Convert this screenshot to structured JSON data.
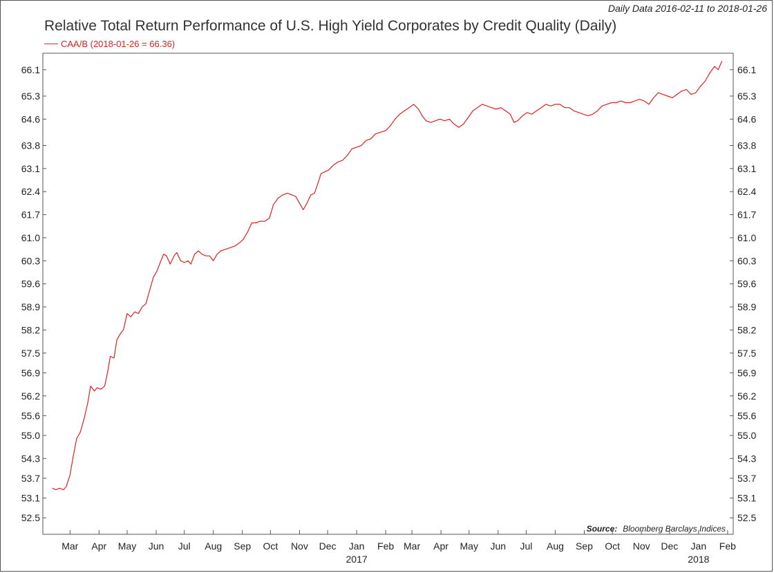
{
  "header": {
    "date_range": "Daily Data 2016-02-11 to 2018-01-26",
    "title": "Relative Total Return Performance of U.S. High Yield Corporates by Credit Quality (Daily)"
  },
  "legend": {
    "label": "CAA/B (2018-01-26 = 66.36)"
  },
  "source": {
    "label": "Source:",
    "text": "Bloomberg Barclays Indices"
  },
  "colors": {
    "series": "#e02020",
    "axis": "#555555",
    "text": "#222222"
  },
  "chart_data": {
    "type": "line",
    "title": "Relative Total Return Performance of U.S. High Yield Corporates by Credit Quality (Daily)",
    "xlim": [
      "2016-02-01",
      "2018-02-07"
    ],
    "ylim": [
      52.0,
      66.6
    ],
    "y_ticks": [
      "52.5",
      "53.1",
      "53.7",
      "54.3",
      "55.0",
      "55.6",
      "56.2",
      "56.9",
      "57.5",
      "58.2",
      "58.9",
      "59.6",
      "60.3",
      "61.0",
      "61.7",
      "62.4",
      "63.1",
      "63.8",
      "64.6",
      "65.3",
      "66.1"
    ],
    "y_axes": "left and right",
    "x_ticks": [
      {
        "date": "2016-03-01",
        "label": "Mar"
      },
      {
        "date": "2016-04-01",
        "label": "Apr"
      },
      {
        "date": "2016-05-01",
        "label": "May"
      },
      {
        "date": "2016-06-01",
        "label": "Jun"
      },
      {
        "date": "2016-07-01",
        "label": "Jul"
      },
      {
        "date": "2016-08-01",
        "label": "Aug"
      },
      {
        "date": "2016-09-01",
        "label": "Sep"
      },
      {
        "date": "2016-10-01",
        "label": "Oct"
      },
      {
        "date": "2016-11-01",
        "label": "Nov"
      },
      {
        "date": "2016-12-01",
        "label": "Dec"
      },
      {
        "date": "2017-01-01",
        "label": "Jan"
      },
      {
        "date": "2017-02-01",
        "label": "Feb"
      },
      {
        "date": "2017-03-01",
        "label": "Mar"
      },
      {
        "date": "2017-04-01",
        "label": "Apr"
      },
      {
        "date": "2017-05-01",
        "label": "May"
      },
      {
        "date": "2017-06-01",
        "label": "Jun"
      },
      {
        "date": "2017-07-01",
        "label": "Jul"
      },
      {
        "date": "2017-08-01",
        "label": "Aug"
      },
      {
        "date": "2017-09-01",
        "label": "Sep"
      },
      {
        "date": "2017-10-01",
        "label": "Oct"
      },
      {
        "date": "2017-11-01",
        "label": "Nov"
      },
      {
        "date": "2017-12-01",
        "label": "Dec"
      },
      {
        "date": "2018-01-01",
        "label": "Jan"
      },
      {
        "date": "2018-02-01",
        "label": "Feb"
      }
    ],
    "year_labels": [
      {
        "date": "2017-01-01",
        "label": "2017"
      },
      {
        "date": "2018-01-01",
        "label": "2018"
      }
    ],
    "grid": false,
    "legend_position": "top-left",
    "series": [
      {
        "name": "CAA/B (2018-01-26 = 66.36)",
        "points": [
          [
            "2016-02-11",
            53.4
          ],
          [
            "2016-02-15",
            53.35
          ],
          [
            "2016-02-19",
            53.4
          ],
          [
            "2016-02-23",
            53.35
          ],
          [
            "2016-02-26",
            53.45
          ],
          [
            "2016-03-01",
            53.8
          ],
          [
            "2016-03-04",
            54.3
          ],
          [
            "2016-03-08",
            54.9
          ],
          [
            "2016-03-12",
            55.1
          ],
          [
            "2016-03-16",
            55.5
          ],
          [
            "2016-03-20",
            56.0
          ],
          [
            "2016-03-23",
            56.5
          ],
          [
            "2016-03-27",
            56.35
          ],
          [
            "2016-03-30",
            56.45
          ],
          [
            "2016-04-03",
            56.4
          ],
          [
            "2016-04-07",
            56.5
          ],
          [
            "2016-04-10",
            56.9
          ],
          [
            "2016-04-13",
            57.4
          ],
          [
            "2016-04-17",
            57.35
          ],
          [
            "2016-04-20",
            57.9
          ],
          [
            "2016-04-24",
            58.1
          ],
          [
            "2016-04-27",
            58.2
          ],
          [
            "2016-05-01",
            58.7
          ],
          [
            "2016-05-05",
            58.6
          ],
          [
            "2016-05-09",
            58.75
          ],
          [
            "2016-05-13",
            58.7
          ],
          [
            "2016-05-17",
            58.9
          ],
          [
            "2016-05-21",
            59.0
          ],
          [
            "2016-05-25",
            59.4
          ],
          [
            "2016-05-29",
            59.8
          ],
          [
            "2016-06-02",
            60.0
          ],
          [
            "2016-06-06",
            60.3
          ],
          [
            "2016-06-09",
            60.5
          ],
          [
            "2016-06-12",
            60.45
          ],
          [
            "2016-06-16",
            60.2
          ],
          [
            "2016-06-20",
            60.45
          ],
          [
            "2016-06-23",
            60.55
          ],
          [
            "2016-06-27",
            60.3
          ],
          [
            "2016-07-01",
            60.25
          ],
          [
            "2016-07-05",
            60.3
          ],
          [
            "2016-07-08",
            60.2
          ],
          [
            "2016-07-12",
            60.5
          ],
          [
            "2016-07-16",
            60.6
          ],
          [
            "2016-07-20",
            60.5
          ],
          [
            "2016-07-24",
            60.45
          ],
          [
            "2016-07-28",
            60.45
          ],
          [
            "2016-08-01",
            60.3
          ],
          [
            "2016-08-05",
            60.5
          ],
          [
            "2016-08-09",
            60.6
          ],
          [
            "2016-08-14",
            60.65
          ],
          [
            "2016-08-19",
            60.7
          ],
          [
            "2016-08-24",
            60.75
          ],
          [
            "2016-08-29",
            60.85
          ],
          [
            "2016-09-02",
            60.95
          ],
          [
            "2016-09-07",
            61.2
          ],
          [
            "2016-09-11",
            61.45
          ],
          [
            "2016-09-15",
            61.45
          ],
          [
            "2016-09-20",
            61.5
          ],
          [
            "2016-09-25",
            61.5
          ],
          [
            "2016-09-30",
            61.6
          ],
          [
            "2016-10-04",
            62.0
          ],
          [
            "2016-10-09",
            62.2
          ],
          [
            "2016-10-14",
            62.3
          ],
          [
            "2016-10-19",
            62.35
          ],
          [
            "2016-10-24",
            62.3
          ],
          [
            "2016-10-28",
            62.25
          ],
          [
            "2016-11-01",
            62.05
          ],
          [
            "2016-11-05",
            61.85
          ],
          [
            "2016-11-09",
            62.05
          ],
          [
            "2016-11-13",
            62.3
          ],
          [
            "2016-11-17",
            62.35
          ],
          [
            "2016-11-20",
            62.6
          ],
          [
            "2016-11-24",
            62.95
          ],
          [
            "2016-11-28",
            63.0
          ],
          [
            "2016-12-02",
            63.05
          ],
          [
            "2016-12-07",
            63.2
          ],
          [
            "2016-12-12",
            63.3
          ],
          [
            "2016-12-17",
            63.35
          ],
          [
            "2016-12-22",
            63.5
          ],
          [
            "2016-12-27",
            63.7
          ],
          [
            "2017-01-01",
            63.75
          ],
          [
            "2017-01-06",
            63.8
          ],
          [
            "2017-01-11",
            63.95
          ],
          [
            "2017-01-16",
            64.0
          ],
          [
            "2017-01-21",
            64.15
          ],
          [
            "2017-01-26",
            64.2
          ],
          [
            "2017-02-01",
            64.25
          ],
          [
            "2017-02-06",
            64.4
          ],
          [
            "2017-02-11",
            64.6
          ],
          [
            "2017-02-16",
            64.75
          ],
          [
            "2017-02-21",
            64.85
          ],
          [
            "2017-02-26",
            64.95
          ],
          [
            "2017-03-03",
            65.05
          ],
          [
            "2017-03-08",
            64.9
          ],
          [
            "2017-03-12",
            64.7
          ],
          [
            "2017-03-16",
            64.55
          ],
          [
            "2017-03-21",
            64.5
          ],
          [
            "2017-03-26",
            64.55
          ],
          [
            "2017-03-31",
            64.6
          ],
          [
            "2017-04-05",
            64.55
          ],
          [
            "2017-04-10",
            64.6
          ],
          [
            "2017-04-15",
            64.45
          ],
          [
            "2017-04-20",
            64.35
          ],
          [
            "2017-04-25",
            64.45
          ],
          [
            "2017-04-30",
            64.65
          ],
          [
            "2017-05-05",
            64.85
          ],
          [
            "2017-05-10",
            64.95
          ],
          [
            "2017-05-15",
            65.05
          ],
          [
            "2017-05-20",
            65.0
          ],
          [
            "2017-05-25",
            64.95
          ],
          [
            "2017-05-30",
            64.9
          ],
          [
            "2017-06-04",
            64.95
          ],
          [
            "2017-06-09",
            64.85
          ],
          [
            "2017-06-14",
            64.75
          ],
          [
            "2017-06-18",
            64.5
          ],
          [
            "2017-06-22",
            64.55
          ],
          [
            "2017-06-27",
            64.7
          ],
          [
            "2017-07-02",
            64.8
          ],
          [
            "2017-07-07",
            64.75
          ],
          [
            "2017-07-12",
            64.85
          ],
          [
            "2017-07-17",
            64.95
          ],
          [
            "2017-07-22",
            65.05
          ],
          [
            "2017-07-27",
            65.0
          ],
          [
            "2017-08-01",
            65.05
          ],
          [
            "2017-08-06",
            65.05
          ],
          [
            "2017-08-11",
            64.95
          ],
          [
            "2017-08-16",
            64.95
          ],
          [
            "2017-08-21",
            64.85
          ],
          [
            "2017-08-26",
            64.8
          ],
          [
            "2017-08-31",
            64.75
          ],
          [
            "2017-09-05",
            64.7
          ],
          [
            "2017-09-10",
            64.75
          ],
          [
            "2017-09-15",
            64.85
          ],
          [
            "2017-09-20",
            65.0
          ],
          [
            "2017-09-25",
            65.05
          ],
          [
            "2017-09-30",
            65.1
          ],
          [
            "2017-10-05",
            65.1
          ],
          [
            "2017-10-10",
            65.15
          ],
          [
            "2017-10-15",
            65.1
          ],
          [
            "2017-10-20",
            65.1
          ],
          [
            "2017-10-25",
            65.15
          ],
          [
            "2017-10-30",
            65.2
          ],
          [
            "2017-11-04",
            65.15
          ],
          [
            "2017-11-09",
            65.05
          ],
          [
            "2017-11-14",
            65.25
          ],
          [
            "2017-11-19",
            65.4
          ],
          [
            "2017-11-24",
            65.35
          ],
          [
            "2017-11-29",
            65.3
          ],
          [
            "2017-12-04",
            65.25
          ],
          [
            "2017-12-09",
            65.35
          ],
          [
            "2017-12-14",
            65.45
          ],
          [
            "2017-12-19",
            65.5
          ],
          [
            "2017-12-24",
            65.35
          ],
          [
            "2017-12-29",
            65.4
          ],
          [
            "2018-01-03",
            65.6
          ],
          [
            "2018-01-08",
            65.75
          ],
          [
            "2018-01-13",
            66.0
          ],
          [
            "2018-01-18",
            66.2
          ],
          [
            "2018-01-22",
            66.1
          ],
          [
            "2018-01-26",
            66.36
          ]
        ]
      }
    ]
  }
}
